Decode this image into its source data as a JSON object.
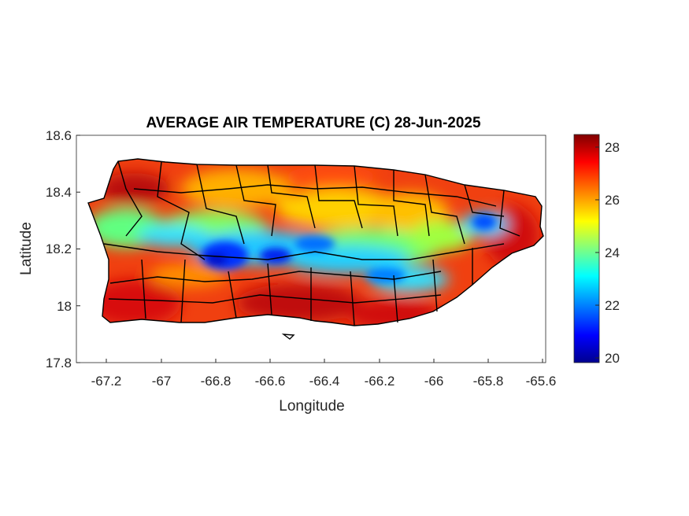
{
  "map": {
    "title": "AVERAGE AIR TEMPERATURE (C) 28-Jun-2025",
    "x_label": "Longitude",
    "y_label": "Latitude",
    "x_range": [
      -67.3,
      -65.58
    ],
    "y_range": [
      17.8,
      18.6
    ],
    "x_ticks": [
      "-67.2",
      "-67",
      "-66.8",
      "-66.6",
      "-66.4",
      "-66.2",
      "-66",
      "-65.8",
      "-65.6"
    ],
    "x_tick_values": [
      -67.2,
      -67.0,
      -66.8,
      -66.6,
      -66.4,
      -66.2,
      -66.0,
      -65.8,
      -65.6
    ],
    "y_ticks": [
      "18.6",
      "18.4",
      "18.2",
      "18",
      "17.8"
    ],
    "y_tick_values": [
      18.6,
      18.4,
      18.2,
      18.0,
      17.8
    ],
    "region": "Puerto Rico",
    "field_variable": "Average air temperature",
    "colormap": "jet",
    "boundary_color": "#000000"
  },
  "colorbar": {
    "range": [
      20,
      28.5
    ],
    "ticks": [
      "28",
      "26",
      "24",
      "22",
      "20"
    ],
    "tick_values": [
      28,
      26,
      24,
      22,
      20
    ],
    "colors": [
      "#00008f",
      "#0000ff",
      "#00ffff",
      "#ffff00",
      "#ff0000",
      "#800000"
    ]
  },
  "chart_data": {
    "type": "heatmap",
    "title": "AVERAGE AIR TEMPERATURE (C) 28-Jun-2025",
    "xlabel": "Longitude",
    "ylabel": "Latitude",
    "xlim": [
      -67.3,
      -65.58
    ],
    "ylim": [
      17.8,
      18.6
    ],
    "clim": [
      20,
      28.5
    ],
    "colormap": "jet",
    "approx_regions": [
      {
        "lon": -66.76,
        "lat": 18.15,
        "value": 21.5
      },
      {
        "lon": -66.57,
        "lat": 18.17,
        "value": 22.0
      },
      {
        "lon": -66.4,
        "lat": 18.2,
        "value": 22.5
      },
      {
        "lon": -66.12,
        "lat": 18.1,
        "value": 23.0
      },
      {
        "lon": -65.8,
        "lat": 18.3,
        "value": 22.5
      },
      {
        "lon": -67.15,
        "lat": 18.3,
        "value": 24.0
      },
      {
        "lon": -66.9,
        "lat": 18.05,
        "value": 27.5
      },
      {
        "lon": -66.5,
        "lat": 18.0,
        "value": 28.0
      },
      {
        "lon": -66.0,
        "lat": 18.05,
        "value": 27.5
      },
      {
        "lon": -66.7,
        "lat": 18.45,
        "value": 27.0
      },
      {
        "lon": -66.15,
        "lat": 18.42,
        "value": 27.0
      },
      {
        "lon": -65.7,
        "lat": 18.2,
        "value": 27.5
      }
    ]
  }
}
